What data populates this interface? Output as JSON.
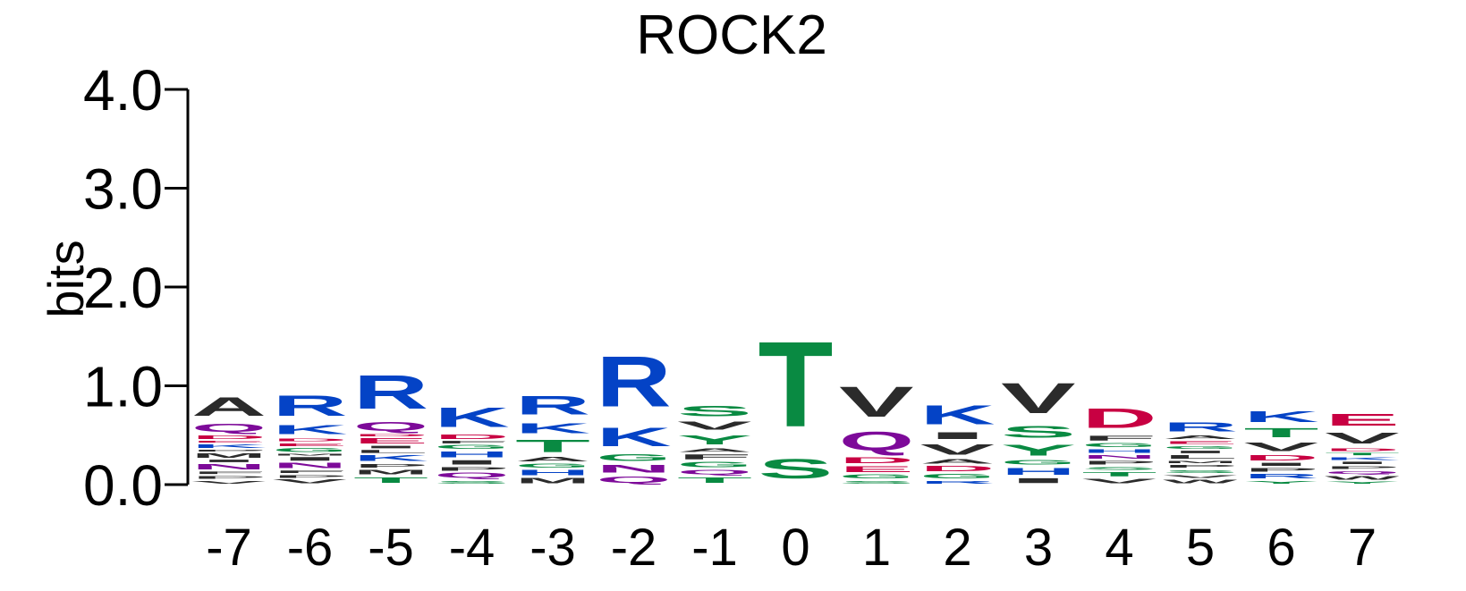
{
  "chart_data": {
    "type": "sequence-logo",
    "title": "ROCK2",
    "ylabel": "bits",
    "ylim": [
      0,
      4
    ],
    "y_ticks": [
      "0.0",
      "1.0",
      "2.0",
      "3.0",
      "4.0"
    ],
    "positions": [
      "-7",
      "-6",
      "-5",
      "-4",
      "-3",
      "-2",
      "-1",
      "0",
      "1",
      "2",
      "3",
      "4",
      "5",
      "6",
      "7"
    ],
    "colors": {
      "R": "#0443c6",
      "K": "#0443c6",
      "H": "#0443c6",
      "D": "#c80042",
      "E": "#c80042",
      "S": "#098a42",
      "T": "#098a42",
      "G": "#098a42",
      "Y": "#098a42",
      "C": "#098a42",
      "Q": "#7d0a99",
      "N": "#7d0a99",
      "A": "#2b2b2b",
      "V": "#2b2b2b",
      "L": "#2b2b2b",
      "I": "#2b2b2b",
      "M": "#2b2b2b",
      "F": "#2b2b2b",
      "P": "#2b2b2b",
      "W": "#2b2b2b"
    },
    "stacks": [
      [
        [
          "V",
          0.05
        ],
        [
          "P",
          0.05
        ],
        [
          "F",
          0.04
        ],
        [
          "N",
          0.08
        ],
        [
          "I",
          0.04
        ],
        [
          "M",
          0.07
        ],
        [
          "P",
          0.03
        ],
        [
          "K",
          0.06
        ],
        [
          "E",
          0.03
        ],
        [
          "D",
          0.06
        ],
        [
          "Q",
          0.13
        ],
        [
          "A",
          0.3
        ]
      ],
      [
        [
          "V",
          0.06
        ],
        [
          "P",
          0.05
        ],
        [
          "F",
          0.04
        ],
        [
          "N",
          0.08
        ],
        [
          "I",
          0.06
        ],
        [
          "M",
          0.03
        ],
        [
          "G",
          0.06
        ],
        [
          "E",
          0.05
        ],
        [
          "D",
          0.05
        ],
        [
          "K",
          0.15
        ],
        [
          "R",
          0.33
        ]
      ],
      [
        [
          "T",
          0.09
        ],
        [
          "M",
          0.07
        ],
        [
          "P",
          0.06
        ],
        [
          "K",
          0.09
        ],
        [
          "L",
          0.05
        ],
        [
          "I",
          0.04
        ],
        [
          "E",
          0.08
        ],
        [
          "D",
          0.04
        ],
        [
          "Q",
          0.14
        ],
        [
          "R",
          0.55
        ]
      ],
      [
        [
          "S",
          0.05
        ],
        [
          "Q",
          0.08
        ],
        [
          "P",
          0.06
        ],
        [
          "I",
          0.07
        ],
        [
          "H",
          0.09
        ],
        [
          "G",
          0.06
        ],
        [
          "F",
          0.04
        ],
        [
          "D",
          0.07
        ],
        [
          "K",
          0.32
        ]
      ],
      [
        [
          "M",
          0.08
        ],
        [
          "H",
          0.08
        ],
        [
          "G",
          0.06
        ],
        [
          "A",
          0.07
        ],
        [
          "T",
          0.2
        ],
        [
          "K",
          0.16
        ],
        [
          "R",
          0.3
        ]
      ],
      [
        [
          "Q",
          0.1
        ],
        [
          "N",
          0.12
        ],
        [
          "G",
          0.11
        ],
        [
          "K",
          0.3
        ],
        [
          "R",
          0.82
        ]
      ],
      [
        [
          "T",
          0.09
        ],
        [
          "Q",
          0.07
        ],
        [
          "G",
          0.08
        ],
        [
          "F",
          0.08
        ],
        [
          "A",
          0.06
        ],
        [
          "Y",
          0.15
        ],
        [
          "V",
          0.13
        ],
        [
          "S",
          0.17
        ]
      ],
      [
        [
          "S",
          0.32
        ],
        [
          "T",
          1.38
        ]
      ],
      [
        [
          "S",
          0.05
        ],
        [
          "G",
          0.06
        ],
        [
          "E",
          0.09
        ],
        [
          "D",
          0.09
        ],
        [
          "Q",
          0.3
        ],
        [
          "V",
          0.49
        ]
      ],
      [
        [
          "R",
          0.05
        ],
        [
          "G",
          0.07
        ],
        [
          "D",
          0.08
        ],
        [
          "A",
          0.07
        ],
        [
          "V",
          0.17
        ],
        [
          "I",
          0.11
        ],
        [
          "K",
          0.31
        ]
      ],
      [
        [
          "I",
          0.08
        ],
        [
          "H",
          0.11
        ],
        [
          "G",
          0.07
        ],
        [
          "Y",
          0.18
        ],
        [
          "S",
          0.19
        ],
        [
          "V",
          0.49
        ]
      ],
      [
        [
          "V",
          0.07
        ],
        [
          "T",
          0.07
        ],
        [
          "S",
          0.05
        ],
        [
          "P",
          0.06
        ],
        [
          "N",
          0.06
        ],
        [
          "H",
          0.06
        ],
        [
          "G",
          0.06
        ],
        [
          "F",
          0.08
        ],
        [
          "D",
          0.32
        ]
      ],
      [
        [
          "W",
          0.06
        ],
        [
          "V",
          0.05
        ],
        [
          "S",
          0.05
        ],
        [
          "P",
          0.05
        ],
        [
          "M",
          0.04
        ],
        [
          "L",
          0.06
        ],
        [
          "I",
          0.04
        ],
        [
          "G",
          0.05
        ],
        [
          "E",
          0.05
        ],
        [
          "A",
          0.06
        ],
        [
          "R",
          0.15
        ]
      ],
      [
        [
          "Y",
          0.05
        ],
        [
          "R",
          0.07
        ],
        [
          "P",
          0.06
        ],
        [
          "I",
          0.05
        ],
        [
          "D",
          0.08
        ],
        [
          "V",
          0.14
        ],
        [
          "T",
          0.15
        ],
        [
          "K",
          0.18
        ]
      ],
      [
        [
          "Y",
          0.04
        ],
        [
          "W",
          0.06
        ],
        [
          "Q",
          0.05
        ],
        [
          "P",
          0.05
        ],
        [
          "I",
          0.04
        ],
        [
          "K",
          0.05
        ],
        [
          "T",
          0.04
        ],
        [
          "D",
          0.05
        ],
        [
          "V",
          0.18
        ],
        [
          "E",
          0.19
        ]
      ]
    ]
  }
}
